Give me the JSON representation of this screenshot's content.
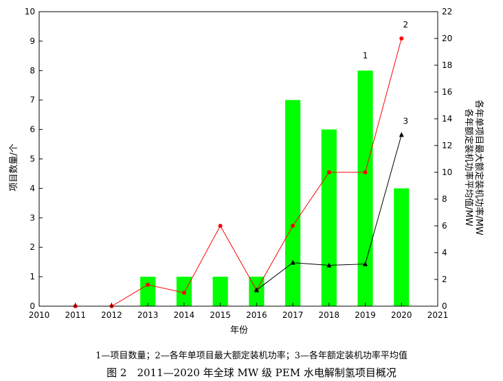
{
  "chart_data": {
    "type": "bar",
    "categories": [
      "2010",
      "2011",
      "2012",
      "2013",
      "2014",
      "2015",
      "2016",
      "2017",
      "2018",
      "2019",
      "2020",
      "2021"
    ],
    "x": [
      2011,
      2012,
      2013,
      2014,
      2015,
      2016,
      2017,
      2018,
      2019,
      2020
    ],
    "series": [
      {
        "name": "项目数量",
        "type": "bar",
        "axis": "left",
        "x": [
          2013,
          2014,
          2015,
          2016,
          2017,
          2018,
          2019,
          2020
        ],
        "values": [
          1,
          1,
          1,
          1,
          7,
          6,
          8,
          4
        ],
        "label": "1",
        "color": "#00ff00"
      },
      {
        "name": "各年单项目最大额定装机功率",
        "type": "line",
        "axis": "right",
        "x": [
          2011,
          2012,
          2013,
          2014,
          2015,
          2016,
          2017,
          2018,
          2019,
          2020
        ],
        "values": [
          0,
          0,
          1.6,
          1,
          6,
          1.2,
          6,
          10,
          10,
          20
        ],
        "label": "2",
        "color": "#ff0000",
        "marker": "circle"
      },
      {
        "name": "各年额定装机功率平均值",
        "type": "line",
        "axis": "right",
        "x": [
          2016,
          2017,
          2018,
          2019,
          2020
        ],
        "values": [
          1.2,
          3.25,
          3.05,
          3.15,
          12.8
        ],
        "label": "3",
        "color": "#000000",
        "marker": "triangle"
      }
    ],
    "ylabel": "项目数量/个",
    "y2label": [
      "各年额定装机功率平均值/MW",
      "各年单项目最大额定装机功率/MW"
    ],
    "xlabel": "年份",
    "xlim": [
      2010,
      2021
    ],
    "ylim": [
      0,
      10
    ],
    "y2lim": [
      0,
      22
    ],
    "yticks": [
      0,
      1,
      2,
      3,
      4,
      5,
      6,
      7,
      8,
      9,
      10
    ],
    "y2ticks": [
      0,
      2,
      4,
      6,
      8,
      10,
      12,
      14,
      16,
      18,
      20,
      22
    ],
    "grid": false,
    "legend": "1—项目数量；2—各年单项目最大额定装机功率；3—各年额定装机功率平均值",
    "caption": "图 2　2011—2020 年全球 MW 级 PEM 水电解制氢项目概况"
  }
}
